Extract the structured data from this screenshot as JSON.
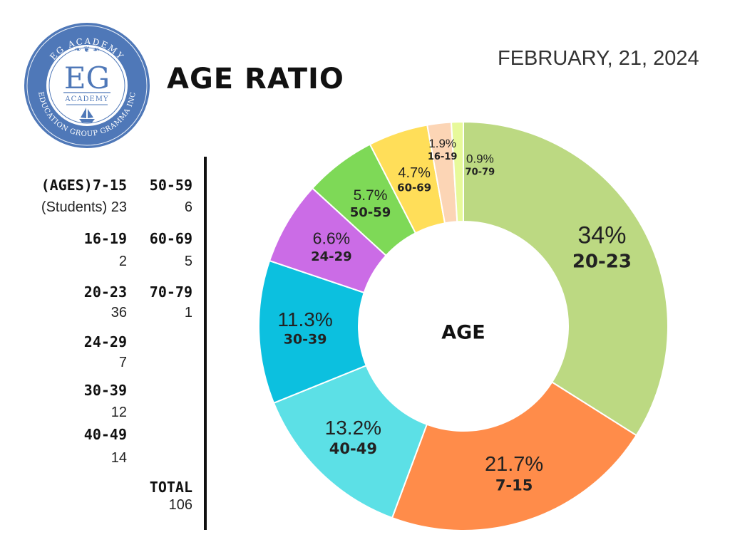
{
  "header": {
    "title": "AGE RATIO",
    "date": "FEBRUARY, 21, 2024",
    "logo": {
      "brand": "EG",
      "arc_top": "EG ACADEMY",
      "subtitle": "ACADEMY",
      "arc_bottom": "EDUCATION GROUP GRAMMA INC",
      "colors": {
        "ring": "#4f78b8",
        "inner": "#ffffff"
      }
    }
  },
  "table": {
    "col1": [
      {
        "label": "(AGES)7-15",
        "value": "(Students) 23"
      },
      {
        "label": "16-19",
        "value": "2"
      },
      {
        "label": "20-23",
        "value": "36"
      },
      {
        "label": "24-29",
        "value": "7"
      },
      {
        "label": "30-39",
        "value": "12"
      },
      {
        "label": "40-49",
        "value": "14"
      }
    ],
    "col2": [
      {
        "label": "50-59",
        "value": "6"
      },
      {
        "label": "60-69",
        "value": "5"
      },
      {
        "label": "70-79",
        "value": "1"
      }
    ],
    "total": {
      "label": "TOTAL",
      "value": "106"
    }
  },
  "chart_data": {
    "type": "pie",
    "style": "donut",
    "center_label": "AGE",
    "order": "clockwise from top",
    "legend": "none",
    "slices": [
      {
        "label": "20-23",
        "percent_label": "34%",
        "value": 36,
        "color": "#bcd982"
      },
      {
        "label": "7-15",
        "percent_label": "21.7%",
        "value": 23,
        "color": "#ff8c4a"
      },
      {
        "label": "40-49",
        "percent_label": "13.2%",
        "value": 14,
        "color": "#5ce0e6"
      },
      {
        "label": "30-39",
        "percent_label": "11.3%",
        "value": 12,
        "color": "#0cc0df"
      },
      {
        "label": "24-29",
        "percent_label": "6.6%",
        "value": 7,
        "color": "#cb6ce6"
      },
      {
        "label": "50-59",
        "percent_label": "5.7%",
        "value": 6,
        "color": "#7ed957"
      },
      {
        "label": "60-69",
        "percent_label": "4.7%",
        "value": 5,
        "color": "#ffde59"
      },
      {
        "label": "16-19",
        "percent_label": "1.9%",
        "value": 2,
        "color": "#fcd5b5"
      },
      {
        "label": "70-79",
        "percent_label": "0.9%",
        "value": 1,
        "color": "#e7f99a"
      }
    ]
  }
}
